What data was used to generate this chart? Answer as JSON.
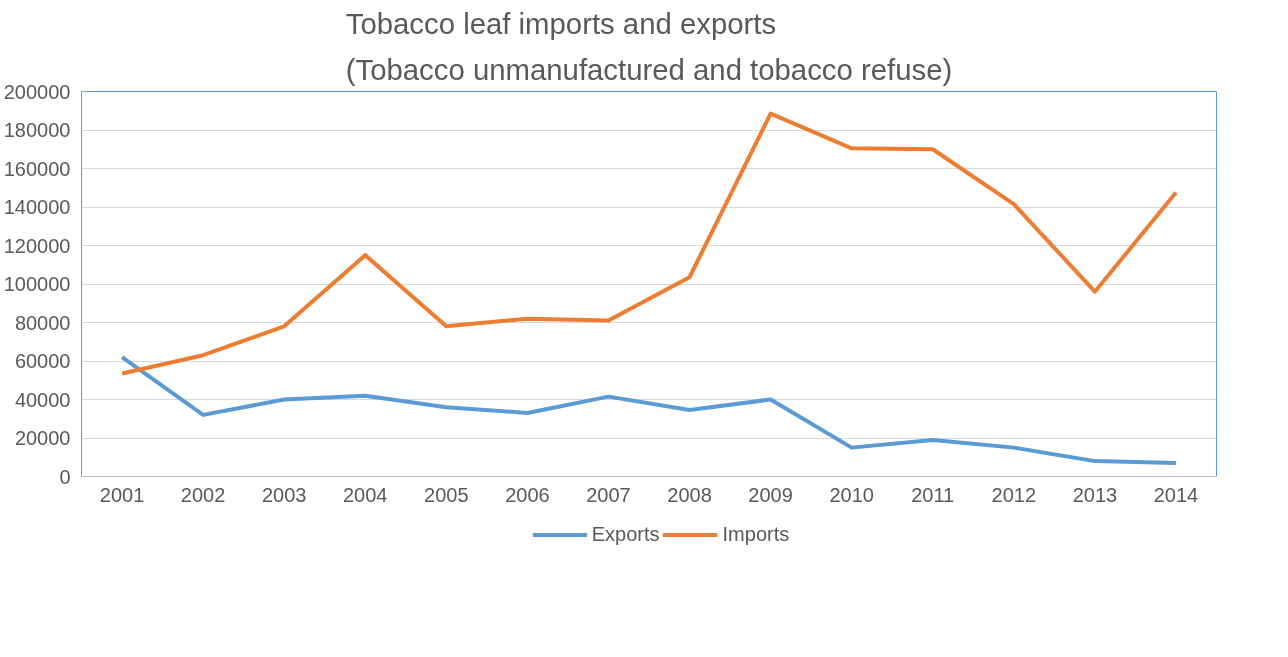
{
  "chart_data": {
    "type": "line",
    "title": "Tobacco leaf imports and exports\n(Tobacco unmanufactured and tobacco refuse)",
    "categories": [
      "2001",
      "2002",
      "2003",
      "2004",
      "2005",
      "2006",
      "2007",
      "2008",
      "2009",
      "2010",
      "2011",
      "2012",
      "2013",
      "2014"
    ],
    "series": [
      {
        "name": "Exports",
        "color": "#5b9bd5",
        "values": [
          62000,
          32000,
          40000,
          42000,
          36000,
          33000,
          41500,
          34500,
          40000,
          15000,
          19000,
          15000,
          8000,
          7000
        ]
      },
      {
        "name": "Imports",
        "color": "#ed7d31",
        "values": [
          53500,
          63000,
          78000,
          115000,
          78000,
          82000,
          81000,
          103500,
          188500,
          170500,
          170000,
          141500,
          96000,
          147500
        ]
      }
    ],
    "ylim": [
      0,
      200000
    ],
    "yticks": [
      0,
      20000,
      40000,
      60000,
      80000,
      100000,
      120000,
      140000,
      160000,
      180000,
      200000
    ],
    "grid": "y",
    "legend": "bottom",
    "marker": "none",
    "line_style": "solid"
  }
}
